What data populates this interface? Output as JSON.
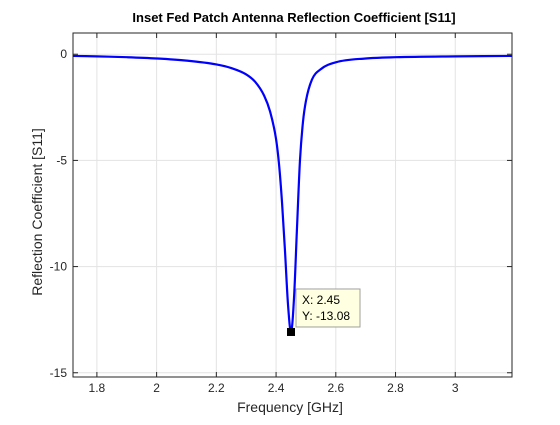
{
  "chart_data": {
    "type": "line",
    "title": "Inset Fed Patch Antenna Reflection Coefficient [S11]",
    "xlabel": "Frequency [GHz]",
    "ylabel": "Reflection Coefficient [S11]",
    "xlim": [
      1.72,
      3.19
    ],
    "ylim": [
      -15.2,
      1.0
    ],
    "xticks": [
      1.8,
      2,
      2.2,
      2.4,
      2.6,
      2.8,
      3
    ],
    "xtick_labels": [
      "1.8",
      "2",
      "2.2",
      "2.4",
      "2.6",
      "2.8",
      "3"
    ],
    "yticks": [
      0,
      -5,
      -10,
      -15
    ],
    "ytick_labels": [
      "0",
      "-5",
      "-10",
      "-15"
    ],
    "grid": true,
    "series": [
      {
        "color": "#0000ff",
        "x": [
          1.72,
          1.8,
          1.9,
          2.0,
          2.1,
          2.2,
          2.25,
          2.3,
          2.33,
          2.36,
          2.38,
          2.4,
          2.41,
          2.42,
          2.43,
          2.44,
          2.45,
          2.46,
          2.47,
          2.48,
          2.49,
          2.5,
          2.52,
          2.55,
          2.6,
          2.7,
          2.8,
          3.0,
          3.19
        ],
        "y": [
          -0.08,
          -0.1,
          -0.14,
          -0.2,
          -0.3,
          -0.48,
          -0.65,
          -0.95,
          -1.3,
          -1.95,
          -2.7,
          -4.0,
          -5.2,
          -7.0,
          -9.3,
          -11.8,
          -13.08,
          -11.5,
          -8.2,
          -5.0,
          -3.2,
          -2.2,
          -1.2,
          -0.7,
          -0.38,
          -0.2,
          -0.14,
          -0.1,
          -0.08
        ]
      }
    ],
    "datatip": {
      "x": 2.45,
      "y": -13.08,
      "x_text": "X: 2.45",
      "y_text": "Y: -13.08"
    }
  }
}
